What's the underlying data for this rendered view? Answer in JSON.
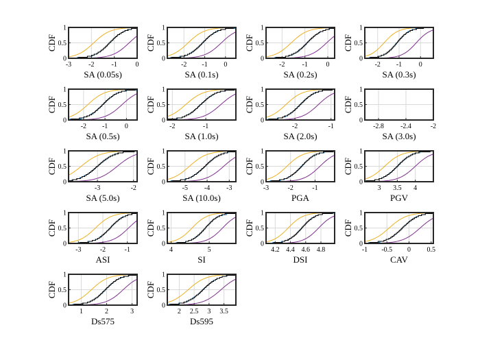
{
  "chart_data": {
    "type": "line",
    "description_layout": "grid of 18 CDF panels, 4 columns x 5 rows",
    "series_colors": {
      "empirical_black": "#000000",
      "empirical_blue": "#0072bd",
      "upper_orange": "#edb120",
      "lower_purple": "#7e2f8e"
    },
    "ylabel": "CDF",
    "yticks": [
      0,
      0.5,
      1
    ],
    "ytick_labels": [
      "0",
      "0.5",
      "1"
    ],
    "panels": [
      {
        "id": "sa005",
        "xlabel": "SA (0.05s)",
        "xlim": [
          -3,
          0
        ],
        "xticks": [
          -3,
          -2,
          -1,
          0
        ],
        "xtick_labels": [
          "-3",
          "-2",
          "-1",
          "0"
        ],
        "median": -1.2,
        "spread": 0.55,
        "upper_shift": -0.7,
        "lower_shift": 0.85,
        "has_data": true
      },
      {
        "id": "sa01",
        "xlabel": "SA (0.1s)",
        "xlim": [
          -2.8,
          0.5
        ],
        "xticks": [
          -2,
          -1,
          0
        ],
        "xtick_labels": [
          "-2",
          "-1",
          "0"
        ],
        "median": -1.1,
        "spread": 0.6,
        "upper_shift": -0.7,
        "lower_shift": 0.9,
        "has_data": true
      },
      {
        "id": "sa02",
        "xlabel": "SA (0.2s)",
        "xlim": [
          -2.7,
          0.3
        ],
        "xticks": [
          -2,
          -1,
          0
        ],
        "xtick_labels": [
          "-2",
          "-1",
          "0"
        ],
        "median": -0.9,
        "spread": 0.55,
        "upper_shift": -0.7,
        "lower_shift": 0.85,
        "has_data": true
      },
      {
        "id": "sa03",
        "xlabel": "SA (0.3s)",
        "xlim": [
          -2.6,
          0.6
        ],
        "xticks": [
          -2,
          -1,
          0
        ],
        "xtick_labels": [
          "-2",
          "-1",
          "0"
        ],
        "median": -1.1,
        "spread": 0.5,
        "upper_shift": -0.6,
        "lower_shift": 0.9,
        "has_data": true
      },
      {
        "id": "sa05",
        "xlabel": "SA (0.5s)",
        "xlim": [
          -2.7,
          0.5
        ],
        "xticks": [
          -2,
          -1,
          0
        ],
        "xtick_labels": [
          "-2",
          "-1",
          "0"
        ],
        "median": -1.1,
        "spread": 0.6,
        "upper_shift": -0.7,
        "lower_shift": 0.9,
        "has_data": true
      },
      {
        "id": "sa10",
        "xlabel": "SA (1.0s)",
        "xlim": [
          -2.15,
          -0.1
        ],
        "xticks": [
          -2,
          -1
        ],
        "xtick_labels": [
          "-2",
          "-1"
        ],
        "median": -1.15,
        "spread": 0.4,
        "upper_shift": -0.45,
        "lower_shift": 0.6,
        "has_data": true
      },
      {
        "id": "sa20",
        "xlabel": "SA (2.0s)",
        "xlim": [
          -2.8,
          -0.9
        ],
        "xticks": [
          -2,
          -1
        ],
        "xtick_labels": [
          "-2",
          "-1"
        ],
        "median": -1.85,
        "spread": 0.35,
        "upper_shift": -0.4,
        "lower_shift": 0.5,
        "has_data": true
      },
      {
        "id": "sa30",
        "xlabel": "SA (3.0s)",
        "xlim": [
          -3.0,
          -2.0
        ],
        "xticks": [
          -2.8,
          -2.4,
          -2
        ],
        "xtick_labels": [
          "-2.8",
          "-2.4",
          "-2"
        ],
        "median": -2.5,
        "spread": 0.2,
        "upper_shift": -0.2,
        "lower_shift": 0.25,
        "has_data": false
      },
      {
        "id": "sa50",
        "xlabel": "SA (5.0s)",
        "xlim": [
          -3.8,
          -1.9
        ],
        "xticks": [
          -3,
          -2
        ],
        "xtick_labels": [
          "-3",
          "-2"
        ],
        "median": -3.0,
        "spread": 0.4,
        "upper_shift": -0.45,
        "lower_shift": 0.55,
        "has_data": true
      },
      {
        "id": "sa100",
        "xlabel": "SA (10.0s)",
        "xlim": [
          -5.8,
          -2.7
        ],
        "xticks": [
          -5,
          -4,
          -3
        ],
        "xtick_labels": [
          "-5",
          "-4",
          "-3"
        ],
        "median": -4.1,
        "spread": 0.6,
        "upper_shift": -0.7,
        "lower_shift": 0.85,
        "has_data": true
      },
      {
        "id": "pga",
        "xlabel": "PGA",
        "xlim": [
          -3.0,
          -0.2
        ],
        "xticks": [
          -3,
          -2,
          -1
        ],
        "xtick_labels": [
          "-3",
          "-2",
          "-1"
        ],
        "median": -1.55,
        "spread": 0.5,
        "upper_shift": -0.6,
        "lower_shift": 0.75,
        "has_data": true
      },
      {
        "id": "pgv",
        "xlabel": "PGV",
        "xlim": [
          2.6,
          4.5
        ],
        "xticks": [
          3,
          3.5,
          4
        ],
        "xtick_labels": [
          "3",
          "3.5",
          "4"
        ],
        "median": 3.5,
        "spread": 0.35,
        "upper_shift": -0.35,
        "lower_shift": 0.5,
        "has_data": true
      },
      {
        "id": "asi",
        "xlabel": "ASI",
        "xlim": [
          -3.4,
          -0.6
        ],
        "xticks": [
          -3,
          -2,
          -1
        ],
        "xtick_labels": [
          "-3",
          "-2",
          "-1"
        ],
        "median": -1.7,
        "spread": 0.5,
        "upper_shift": -0.6,
        "lower_shift": 0.75,
        "has_data": true
      },
      {
        "id": "si",
        "xlabel": "SI",
        "xlim": [
          3.9,
          5.7
        ],
        "xticks": [
          4,
          5
        ],
        "xtick_labels": [
          "4",
          "5"
        ],
        "median": 4.9,
        "spread": 0.3,
        "upper_shift": -0.35,
        "lower_shift": 0.45,
        "has_data": true
      },
      {
        "id": "dsi",
        "xlabel": "DSI",
        "xlim": [
          4.08,
          4.98
        ],
        "xticks": [
          4.2,
          4.4,
          4.6,
          4.8
        ],
        "xtick_labels": [
          "4.2",
          "4.4",
          "4.6",
          "4.8"
        ],
        "median": 4.55,
        "spread": 0.15,
        "upper_shift": -0.18,
        "lower_shift": 0.22,
        "has_data": true
      },
      {
        "id": "cav",
        "xlabel": "CAV",
        "xlim": [
          -1.0,
          0.55
        ],
        "xticks": [
          -1,
          -0.5,
          0,
          0.5
        ],
        "xtick_labels": [
          "-1",
          "-0.5",
          "0",
          "0.5"
        ],
        "median": -0.15,
        "spread": 0.3,
        "upper_shift": -0.3,
        "lower_shift": 0.4,
        "has_data": true
      },
      {
        "id": "ds575",
        "xlabel": "Ds575",
        "xlim": [
          0.5,
          3.2
        ],
        "xticks": [
          1,
          2,
          3
        ],
        "xtick_labels": [
          "1",
          "2",
          "3"
        ],
        "median": 1.95,
        "spread": 0.5,
        "upper_shift": -0.55,
        "lower_shift": 0.7,
        "has_data": true
      },
      {
        "id": "ds595",
        "xlabel": "Ds595",
        "xlim": [
          1.6,
          3.9
        ],
        "xticks": [
          2,
          2.5,
          3,
          3.5
        ],
        "xtick_labels": [
          "2",
          "2.5",
          "3",
          "3.5"
        ],
        "median": 2.8,
        "spread": 0.45,
        "upper_shift": -0.5,
        "lower_shift": 0.6,
        "has_data": true
      }
    ]
  }
}
